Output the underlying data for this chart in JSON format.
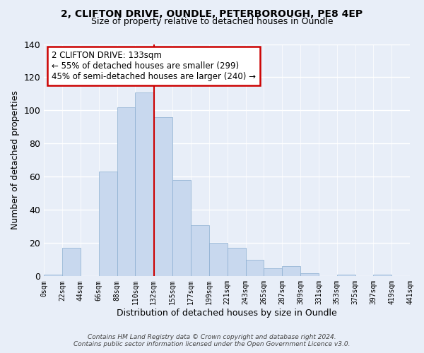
{
  "title1": "2, CLIFTON DRIVE, OUNDLE, PETERBOROUGH, PE8 4EP",
  "title2": "Size of property relative to detached houses in Oundle",
  "xlabel": "Distribution of detached houses by size in Oundle",
  "ylabel": "Number of detached properties",
  "bin_edges": [
    0,
    22,
    44,
    66,
    88,
    110,
    132,
    155,
    177,
    199,
    221,
    243,
    265,
    287,
    309,
    331,
    353,
    375,
    397,
    419,
    441
  ],
  "counts": [
    1,
    17,
    0,
    63,
    102,
    111,
    96,
    58,
    31,
    20,
    17,
    10,
    5,
    6,
    2,
    0,
    1,
    0,
    1,
    0
  ],
  "bar_color": "#c8d8ee",
  "bar_edge_color": "#8aaed0",
  "vline_x": 133,
  "vline_color": "#cc0000",
  "annotation_line1": "2 CLIFTON DRIVE: 133sqm",
  "annotation_line2": "← 55% of detached houses are smaller (299)",
  "annotation_line3": "45% of semi-detached houses are larger (240) →",
  "annotation_box_color": "#ffffff",
  "annotation_box_edge": "#cc0000",
  "ylim": [
    0,
    140
  ],
  "yticks": [
    0,
    20,
    40,
    60,
    80,
    100,
    120,
    140
  ],
  "tick_labels": [
    "0sqm",
    "22sqm",
    "44sqm",
    "66sqm",
    "88sqm",
    "110sqm",
    "132sqm",
    "155sqm",
    "177sqm",
    "199sqm",
    "221sqm",
    "243sqm",
    "265sqm",
    "287sqm",
    "309sqm",
    "331sqm",
    "353sqm",
    "375sqm",
    "397sqm",
    "419sqm",
    "441sqm"
  ],
  "footnote": "Contains HM Land Registry data © Crown copyright and database right 2024.\nContains public sector information licensed under the Open Government Licence v3.0.",
  "bg_color": "#e8eef8"
}
